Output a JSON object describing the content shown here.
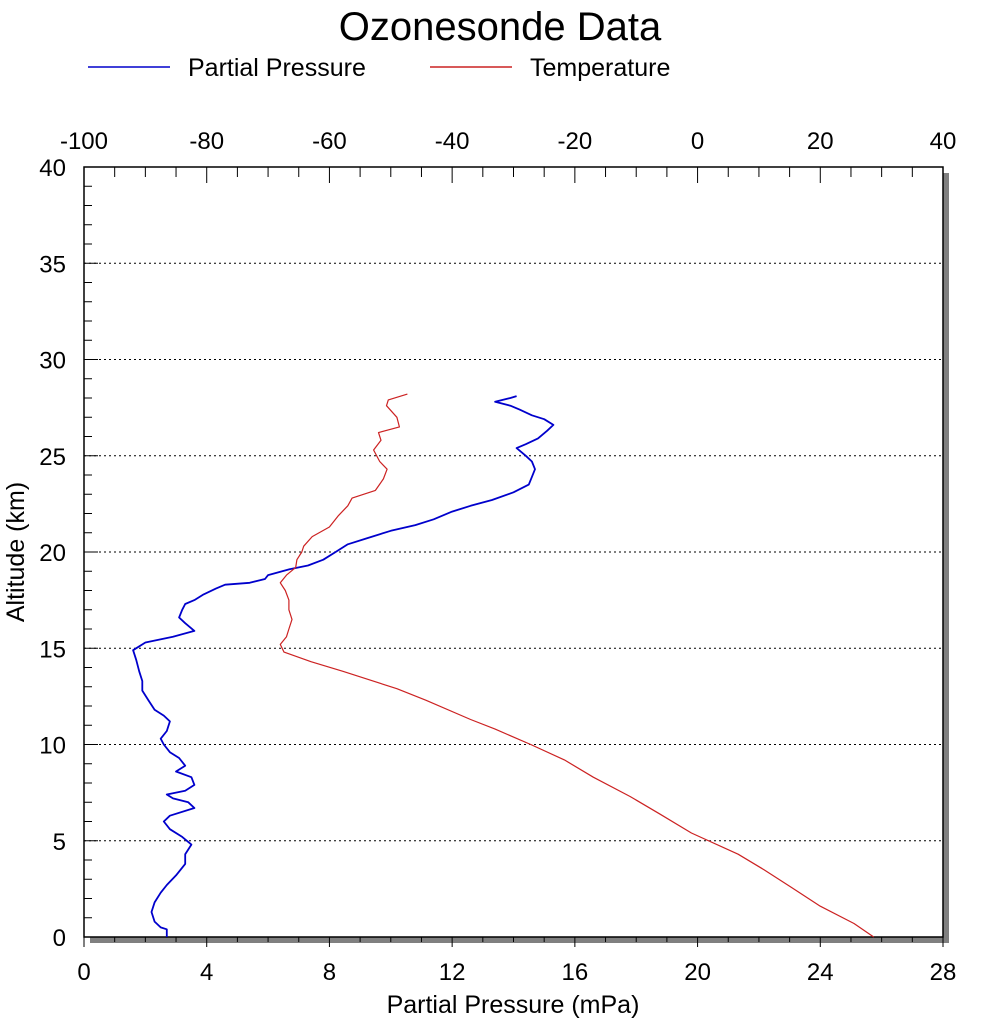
{
  "chart_data": {
    "type": "line",
    "title": "Ozonesonde Data",
    "xlabel": "Partial Pressure (mPa)",
    "ylabel": "Altitude (km)",
    "top_axis_ticks": [
      "-100",
      "-80",
      "-60",
      "-40",
      "-20",
      "0",
      "20",
      "40"
    ],
    "bottom_axis_ticks": [
      "0",
      "4",
      "8",
      "12",
      "16",
      "20",
      "24",
      "28"
    ],
    "y_ticks": [
      "0",
      "5",
      "10",
      "15",
      "20",
      "25",
      "30",
      "35",
      "40"
    ],
    "xlim_bottom": [
      0,
      28
    ],
    "xlim_top": [
      -100,
      40
    ],
    "ylim": [
      0,
      40
    ],
    "grid": "horizontal dotted lines at each y tick",
    "legend_placement": "top-left",
    "series": [
      {
        "name": "Partial Pressure",
        "axis": "bottom",
        "color": "#0000cc",
        "points": [
          [
            2.7,
            0.0
          ],
          [
            2.7,
            0.4
          ],
          [
            2.5,
            0.5
          ],
          [
            2.3,
            0.8
          ],
          [
            2.2,
            1.3
          ],
          [
            2.3,
            1.8
          ],
          [
            2.5,
            2.3
          ],
          [
            2.7,
            2.7
          ],
          [
            3.0,
            3.2
          ],
          [
            3.3,
            3.8
          ],
          [
            3.3,
            4.3
          ],
          [
            3.5,
            4.8
          ],
          [
            3.2,
            5.2
          ],
          [
            2.8,
            5.6
          ],
          [
            2.6,
            6.0
          ],
          [
            2.8,
            6.3
          ],
          [
            3.6,
            6.7
          ],
          [
            3.4,
            7.0
          ],
          [
            2.9,
            7.2
          ],
          [
            2.7,
            7.4
          ],
          [
            3.3,
            7.6
          ],
          [
            3.6,
            7.9
          ],
          [
            3.5,
            8.3
          ],
          [
            3.0,
            8.6
          ],
          [
            3.3,
            8.9
          ],
          [
            3.1,
            9.3
          ],
          [
            2.8,
            9.6
          ],
          [
            2.6,
            10.0
          ],
          [
            2.5,
            10.3
          ],
          [
            2.7,
            10.7
          ],
          [
            2.8,
            11.2
          ],
          [
            2.6,
            11.5
          ],
          [
            2.3,
            11.8
          ],
          [
            2.1,
            12.3
          ],
          [
            1.9,
            12.8
          ],
          [
            1.9,
            13.3
          ],
          [
            1.8,
            13.8
          ],
          [
            1.7,
            14.4
          ],
          [
            1.6,
            14.9
          ],
          [
            2.0,
            15.3
          ],
          [
            2.9,
            15.6
          ],
          [
            3.6,
            15.9
          ],
          [
            3.3,
            16.3
          ],
          [
            3.1,
            16.6
          ],
          [
            3.2,
            17.0
          ],
          [
            3.3,
            17.3
          ],
          [
            3.6,
            17.5
          ],
          [
            3.9,
            17.8
          ],
          [
            4.3,
            18.1
          ],
          [
            4.6,
            18.3
          ],
          [
            5.4,
            18.4
          ],
          [
            5.9,
            18.6
          ],
          [
            6.0,
            18.8
          ],
          [
            6.7,
            19.1
          ],
          [
            7.3,
            19.3
          ],
          [
            7.8,
            19.6
          ],
          [
            8.2,
            20.0
          ],
          [
            8.6,
            20.4
          ],
          [
            9.2,
            20.7
          ],
          [
            10.0,
            21.1
          ],
          [
            10.8,
            21.4
          ],
          [
            11.4,
            21.7
          ],
          [
            12.0,
            22.1
          ],
          [
            12.6,
            22.4
          ],
          [
            13.3,
            22.7
          ],
          [
            14.0,
            23.1
          ],
          [
            14.5,
            23.5
          ],
          [
            14.6,
            23.9
          ],
          [
            14.7,
            24.3
          ],
          [
            14.6,
            24.7
          ],
          [
            14.4,
            25.0
          ],
          [
            14.1,
            25.4
          ],
          [
            14.4,
            25.6
          ],
          [
            14.8,
            25.9
          ],
          [
            15.1,
            26.3
          ],
          [
            15.3,
            26.6
          ],
          [
            15.0,
            26.9
          ],
          [
            14.6,
            27.1
          ],
          [
            14.2,
            27.4
          ],
          [
            13.9,
            27.6
          ],
          [
            13.4,
            27.8
          ],
          [
            13.9,
            28.0
          ],
          [
            14.1,
            28.1
          ]
        ]
      },
      {
        "name": "Temperature",
        "axis": "top",
        "color": "#cc2222",
        "points": [
          [
            28.7,
            0.0
          ],
          [
            25.5,
            0.7
          ],
          [
            20.0,
            1.6
          ],
          [
            15.2,
            2.6
          ],
          [
            10.8,
            3.5
          ],
          [
            6.6,
            4.3
          ],
          [
            -1.0,
            5.4
          ],
          [
            -6.2,
            6.4
          ],
          [
            -11.0,
            7.3
          ],
          [
            -17.0,
            8.3
          ],
          [
            -21.7,
            9.2
          ],
          [
            -27.2,
            10.0
          ],
          [
            -33.0,
            10.8
          ],
          [
            -37.0,
            11.3
          ],
          [
            -44.3,
            12.3
          ],
          [
            -49.0,
            12.9
          ],
          [
            -57.8,
            13.8
          ],
          [
            -63.0,
            14.3
          ],
          [
            -67.4,
            14.8
          ],
          [
            -68.0,
            15.2
          ],
          [
            -67.0,
            15.6
          ],
          [
            -66.6,
            16.0
          ],
          [
            -66.1,
            16.5
          ],
          [
            -66.6,
            17.0
          ],
          [
            -66.6,
            17.5
          ],
          [
            -67.2,
            18.0
          ],
          [
            -68.0,
            18.4
          ],
          [
            -67.0,
            18.8
          ],
          [
            -65.5,
            19.2
          ],
          [
            -65.3,
            19.6
          ],
          [
            -64.5,
            20.0
          ],
          [
            -64.2,
            20.3
          ],
          [
            -62.8,
            20.8
          ],
          [
            -60.0,
            21.3
          ],
          [
            -58.5,
            21.9
          ],
          [
            -57.0,
            22.4
          ],
          [
            -56.3,
            22.8
          ],
          [
            -52.5,
            23.2
          ],
          [
            -51.2,
            23.8
          ],
          [
            -50.6,
            24.3
          ],
          [
            -51.8,
            24.7
          ],
          [
            -52.8,
            25.3
          ],
          [
            -51.6,
            25.8
          ],
          [
            -52.0,
            26.2
          ],
          [
            -48.6,
            26.5
          ],
          [
            -49.0,
            27.0
          ],
          [
            -50.7,
            27.6
          ],
          [
            -50.4,
            27.9
          ],
          [
            -47.3,
            28.2
          ]
        ]
      }
    ]
  }
}
